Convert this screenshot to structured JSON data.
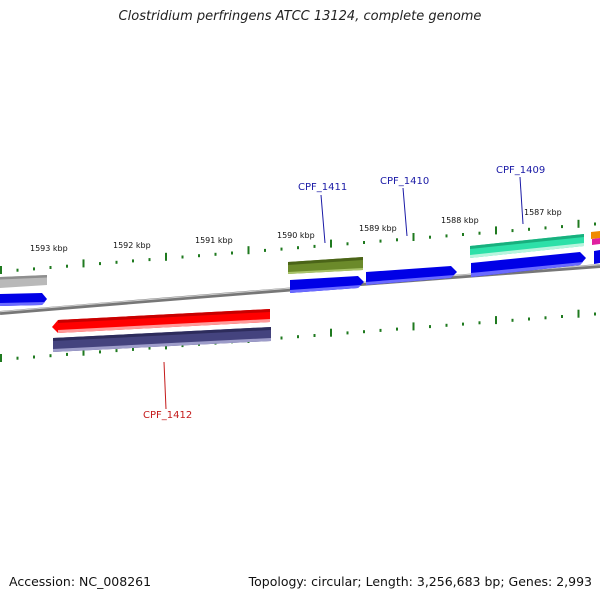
{
  "title": "Clostridium perfringens ATCC 13124, complete genome",
  "footer": {
    "accession": "Accession: NC_008261",
    "stats": "Topology: circular; Length: 3,256,683 bp; Genes: 2,993"
  },
  "scale_labels": [
    "1593 kbp",
    "1592 kbp",
    "1591 kbp",
    "1590 kbp",
    "1589 kbp",
    "1588 kbp",
    "1587 kbp"
  ],
  "gene_labels": [
    {
      "text": "CPF_1411",
      "color": "#1a1aa6"
    },
    {
      "text": "CPF_1410",
      "color": "#1a1aa6"
    },
    {
      "text": "CPF_1409",
      "color": "#1a1aa6"
    },
    {
      "text": "CPF_1412",
      "color": "#c41a1a"
    }
  ],
  "colors": {
    "backbone": "#777777",
    "ticks": "#1f7a1f",
    "cds_forward": "#0000e6",
    "cds_reverse": "#ff0000",
    "grey_feature": "#b9b9b9",
    "olive_feature": "#6b8a2a",
    "teal_feature": "#2de0a8",
    "navy_feature": "#44437e",
    "orange_feature": "#f08a00",
    "magenta_feature": "#e020a0"
  }
}
